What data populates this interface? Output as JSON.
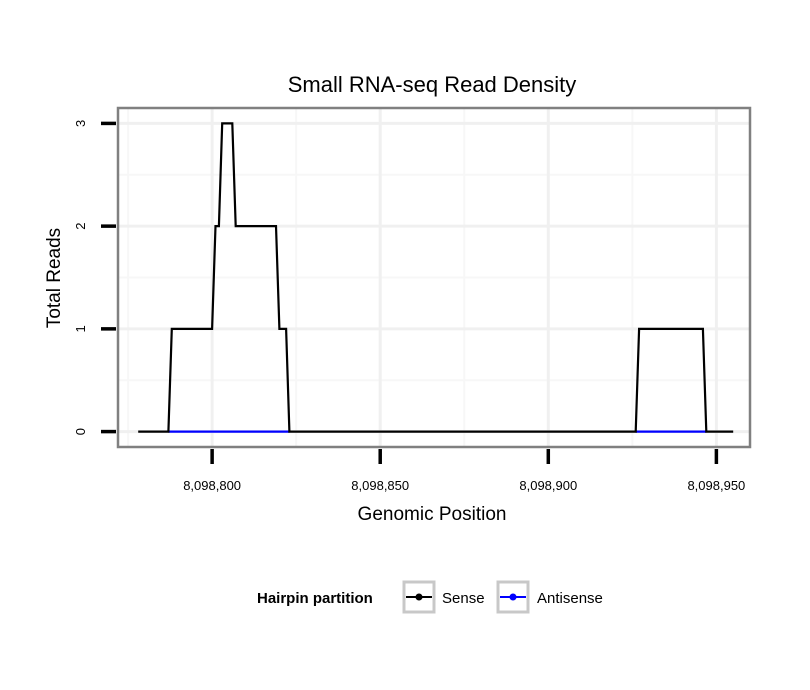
{
  "chart_data": {
    "type": "line",
    "title": "Small RNA-seq Read Density",
    "xlabel": "Genomic Position",
    "ylabel": "Total Reads",
    "xlim": [
      8098772,
      8098960
    ],
    "ylim": [
      -0.15,
      3.15
    ],
    "x_ticks": [
      8098800,
      8098850,
      8098900,
      8098950
    ],
    "x_tick_labels": [
      "8,098,800",
      "8,098,850",
      "8,098,900",
      "8,098,950"
    ],
    "y_ticks": [
      0,
      1,
      2,
      3
    ],
    "y_tick_labels": [
      "0",
      "1",
      "2",
      "3"
    ],
    "grid": true,
    "legend": {
      "title": "Hairpin partition",
      "position": "bottom",
      "entries": [
        {
          "label": "Sense",
          "color": "#000000"
        },
        {
          "label": "Antisense",
          "color": "#0000ff"
        }
      ]
    },
    "series": [
      {
        "name": "Sense",
        "color": "#000000",
        "x": [
          8098778,
          8098787,
          8098788,
          8098800,
          8098801,
          8098802,
          8098803,
          8098804,
          8098806,
          8098807,
          8098819,
          8098820,
          8098822,
          8098823,
          8098926,
          8098927,
          8098946,
          8098947,
          8098955
        ],
        "y": [
          0,
          0,
          1,
          1,
          2,
          2,
          3,
          3,
          3,
          2,
          2,
          1,
          1,
          0,
          0,
          1,
          1,
          0,
          0
        ]
      },
      {
        "name": "Antisense",
        "color": "#0000ff",
        "segments": [
          {
            "x": [
              8098787,
              8098823
            ],
            "y": [
              0,
              0
            ]
          },
          {
            "x": [
              8098926,
              8098947
            ],
            "y": [
              0,
              0
            ]
          }
        ]
      }
    ]
  }
}
